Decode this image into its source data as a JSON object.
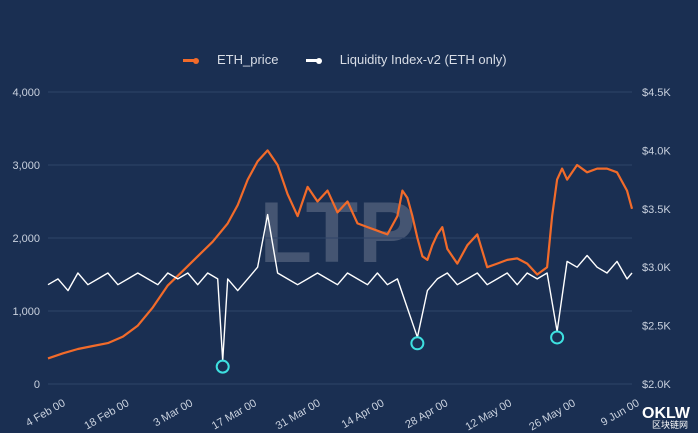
{
  "chart_data": {
    "type": "line",
    "x_dates": [
      "4 Feb 00",
      "18 Feb 00",
      "3 Mar 00",
      "17 Mar 00",
      "31 Mar 00",
      "14 Apr 00",
      "28 Apr 00",
      "12 May 00",
      "26 May 00",
      "9 Jun 00"
    ],
    "left_axis": {
      "ticks": [
        "0",
        "1,000",
        "2,000",
        "3,000",
        "4,000"
      ],
      "ylim": [
        0,
        4000
      ]
    },
    "right_axis": {
      "ticks": [
        "$2.0K",
        "$2.5K",
        "$3.0K",
        "$3.5K",
        "$4.0K",
        "$4.5K"
      ],
      "ylim": [
        2000,
        4500
      ]
    },
    "grid": "horizontal",
    "legend_position": "top-center",
    "series": [
      {
        "name": "ETH_price",
        "axis": "left",
        "color": "#f26b2a",
        "points": [
          [
            0,
            350
          ],
          [
            3,
            420
          ],
          [
            6,
            480
          ],
          [
            9,
            520
          ],
          [
            12,
            560
          ],
          [
            15,
            650
          ],
          [
            18,
            800
          ],
          [
            21,
            1050
          ],
          [
            24,
            1350
          ],
          [
            27,
            1550
          ],
          [
            30,
            1750
          ],
          [
            33,
            1950
          ],
          [
            36,
            2200
          ],
          [
            38,
            2450
          ],
          [
            40,
            2800
          ],
          [
            42,
            3050
          ],
          [
            44,
            3200
          ],
          [
            46,
            3000
          ],
          [
            48,
            2600
          ],
          [
            50,
            2300
          ],
          [
            52,
            2700
          ],
          [
            54,
            2500
          ],
          [
            56,
            2650
          ],
          [
            58,
            2350
          ],
          [
            60,
            2500
          ],
          [
            62,
            2200
          ],
          [
            64,
            2150
          ],
          [
            66,
            2100
          ],
          [
            68,
            2050
          ],
          [
            70,
            2300
          ],
          [
            71,
            2650
          ],
          [
            72,
            2550
          ],
          [
            73,
            2300
          ],
          [
            74,
            2000
          ],
          [
            75,
            1750
          ],
          [
            76,
            1700
          ],
          [
            77,
            1900
          ],
          [
            78,
            2050
          ],
          [
            79,
            2150
          ],
          [
            80,
            1850
          ],
          [
            82,
            1650
          ],
          [
            84,
            1900
          ],
          [
            86,
            2050
          ],
          [
            88,
            1600
          ],
          [
            90,
            1650
          ],
          [
            92,
            1700
          ],
          [
            94,
            1720
          ],
          [
            96,
            1650
          ],
          [
            98,
            1500
          ],
          [
            100,
            1600
          ],
          [
            101,
            2300
          ],
          [
            102,
            2800
          ],
          [
            103,
            2950
          ],
          [
            104,
            2800
          ],
          [
            106,
            3000
          ],
          [
            108,
            2900
          ],
          [
            110,
            2950
          ],
          [
            112,
            2950
          ],
          [
            114,
            2900
          ],
          [
            116,
            2650
          ],
          [
            117,
            2400
          ]
        ]
      },
      {
        "name": "Liquidity Index-v2 (ETH only)",
        "axis": "right",
        "color": "#ffffff",
        "points": [
          [
            0,
            2850
          ],
          [
            2,
            2900
          ],
          [
            4,
            2800
          ],
          [
            6,
            2950
          ],
          [
            8,
            2850
          ],
          [
            10,
            2900
          ],
          [
            12,
            2950
          ],
          [
            14,
            2850
          ],
          [
            16,
            2900
          ],
          [
            18,
            2950
          ],
          [
            20,
            2900
          ],
          [
            22,
            2850
          ],
          [
            24,
            2950
          ],
          [
            26,
            2900
          ],
          [
            28,
            2950
          ],
          [
            30,
            2850
          ],
          [
            32,
            2950
          ],
          [
            34,
            2900
          ],
          [
            35,
            2200
          ],
          [
            36,
            2900
          ],
          [
            38,
            2800
          ],
          [
            40,
            2900
          ],
          [
            42,
            3000
          ],
          [
            44,
            3450
          ],
          [
            46,
            2950
          ],
          [
            48,
            2900
          ],
          [
            50,
            2850
          ],
          [
            52,
            2900
          ],
          [
            54,
            2950
          ],
          [
            56,
            2900
          ],
          [
            58,
            2850
          ],
          [
            60,
            2950
          ],
          [
            62,
            2900
          ],
          [
            64,
            2850
          ],
          [
            66,
            2950
          ],
          [
            68,
            2850
          ],
          [
            70,
            2900
          ],
          [
            72,
            2650
          ],
          [
            74,
            2400
          ],
          [
            76,
            2800
          ],
          [
            78,
            2900
          ],
          [
            80,
            2950
          ],
          [
            82,
            2850
          ],
          [
            84,
            2900
          ],
          [
            86,
            2950
          ],
          [
            88,
            2850
          ],
          [
            90,
            2900
          ],
          [
            92,
            2950
          ],
          [
            94,
            2850
          ],
          [
            96,
            2950
          ],
          [
            98,
            2900
          ],
          [
            100,
            2950
          ],
          [
            102,
            2450
          ],
          [
            104,
            3050
          ],
          [
            106,
            3000
          ],
          [
            108,
            3100
          ],
          [
            110,
            3000
          ],
          [
            112,
            2950
          ],
          [
            114,
            3050
          ],
          [
            116,
            2900
          ],
          [
            117,
            2950
          ]
        ]
      }
    ],
    "markers": [
      {
        "x": 35,
        "value": 2200
      },
      {
        "x": 74,
        "value": 2400
      },
      {
        "x": 102,
        "value": 2450
      }
    ]
  },
  "watermark": {
    "text": "LTP"
  },
  "corner_logo": {
    "text": "OKLW",
    "subtext": "区块链网"
  }
}
